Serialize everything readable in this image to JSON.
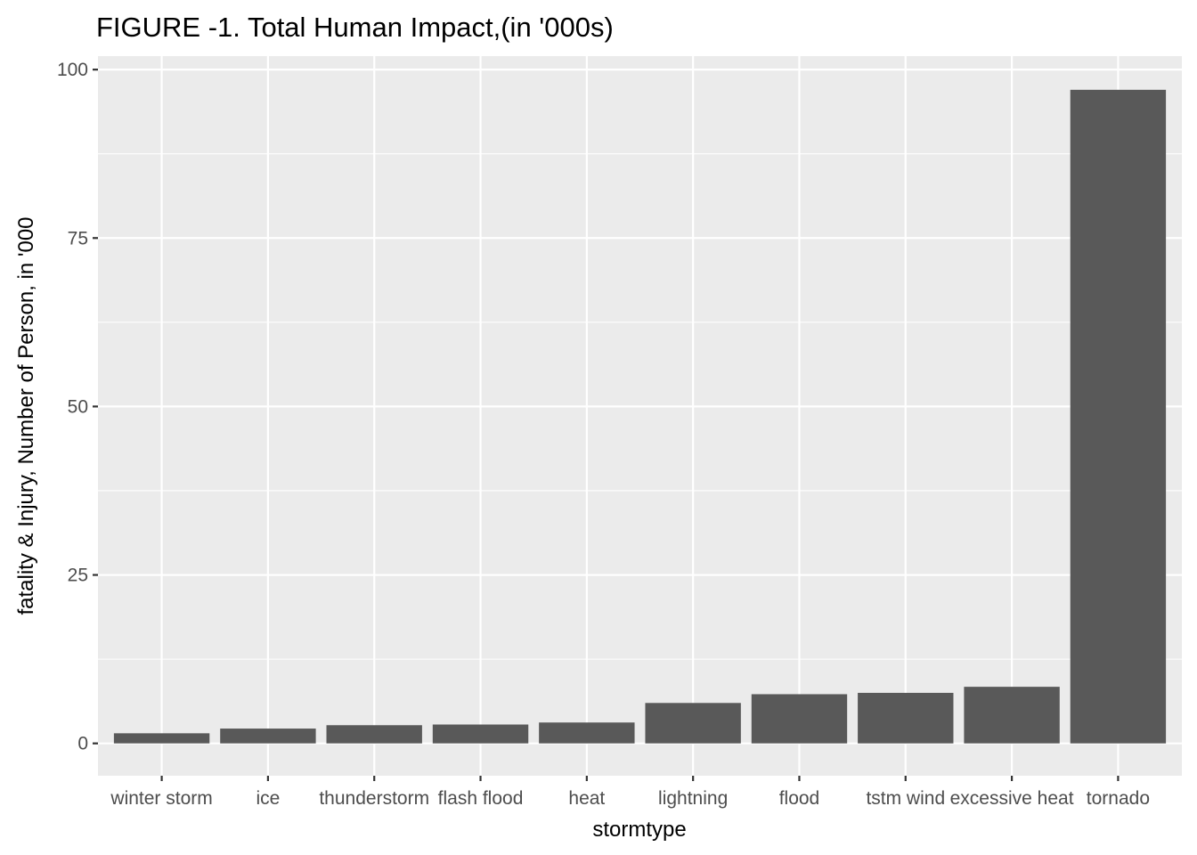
{
  "chart_data": {
    "type": "bar",
    "title": "FIGURE -1. Total Human Impact,(in '000s)",
    "xlabel": "stormtype",
    "ylabel": "fatality & Injury, Number of Person, in '000",
    "categories": [
      "winter storm",
      "ice",
      "thunderstorm",
      "flash flood",
      "heat",
      "lightning",
      "flood",
      "tstm wind",
      "excessive heat",
      "tornado"
    ],
    "values": [
      1.5,
      2.2,
      2.7,
      2.8,
      3.1,
      6.0,
      7.3,
      7.5,
      8.4,
      97.0
    ],
    "ylim": [
      -4.8,
      102
    ],
    "yticks": [
      0,
      25,
      50,
      75,
      100
    ],
    "grid": true,
    "colors": {
      "bar": "#595959",
      "panel": "#ebebeb",
      "grid": "#ffffff"
    }
  }
}
